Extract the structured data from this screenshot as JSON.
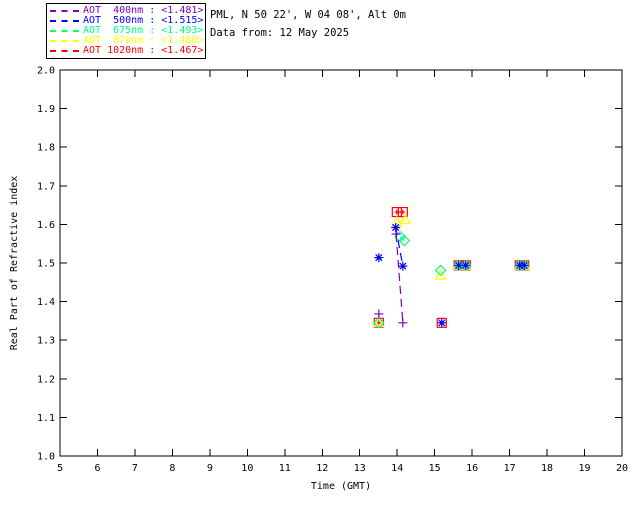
{
  "window": {
    "background": "#ffffff",
    "foreground": "#000000"
  },
  "header": {
    "site_line": "PML, N 50 22', W 04 08', Alt 0m",
    "date_line": "Data from: 12 May 2025"
  },
  "legend": {
    "entries": [
      {
        "label": "AOT  400nm : <1.481>",
        "color": "#7A00BE",
        "symbol": "plus"
      },
      {
        "label": "AOT  500nm : <1.515>",
        "color": "#0000FF",
        "symbol": "asterisk"
      },
      {
        "label": "AOT  675nm : <1.493>",
        "color": "#00FF7F",
        "symbol": "diamond"
      },
      {
        "label": "AOT  870nm : <1.480>",
        "color": "#FFFF00",
        "symbol": "triangle"
      },
      {
        "label": "AOT 1020nm : <1.467>",
        "color": "#FF0000",
        "symbol": "square-plus"
      }
    ]
  },
  "chart_data": {
    "type": "scatter",
    "title": "",
    "xlabel": "Time (GMT)",
    "ylabel": "Real Part of Refractive index",
    "xlim": [
      5,
      20
    ],
    "ylim": [
      1.0,
      2.0
    ],
    "xticks": [
      5,
      6,
      7,
      8,
      9,
      10,
      11,
      12,
      13,
      14,
      15,
      16,
      17,
      18,
      19,
      20
    ],
    "yticks": [
      1.0,
      1.1,
      1.2,
      1.3,
      1.4,
      1.5,
      1.6,
      1.7,
      1.8,
      1.9,
      2.0
    ],
    "grid": false,
    "legend_position": "top-left-outside",
    "axis_color": "#000000",
    "series": [
      {
        "name": "AOT 1020nm",
        "wavelength_nm": 1020,
        "mean_label": "<1.467>",
        "color": "#FF0000",
        "symbol": "square-plus",
        "points": [
          [
            13.51,
            1.345
          ],
          [
            13.99,
            1.632
          ],
          [
            14.15,
            1.632
          ],
          [
            15.19,
            1.345
          ],
          [
            15.64,
            1.494
          ],
          [
            15.83,
            1.494
          ],
          [
            17.27,
            1.494
          ],
          [
            17.39,
            1.494
          ]
        ],
        "lines": [
          [
            [
              13.99,
              1.632
            ],
            [
              14.15,
              1.632
            ]
          ]
        ]
      },
      {
        "name": "AOT  870nm",
        "wavelength_nm": 870,
        "mean_label": "<1.480>",
        "color": "#FFFF00",
        "symbol": "triangle",
        "points": [
          [
            13.51,
            1.345
          ],
          [
            13.99,
            1.606
          ],
          [
            14.22,
            1.612
          ],
          [
            15.16,
            1.468
          ],
          [
            15.64,
            1.494
          ],
          [
            15.83,
            1.494
          ],
          [
            17.27,
            1.494
          ],
          [
            17.39,
            1.494
          ]
        ],
        "lines": [
          [
            [
              13.99,
              1.606
            ],
            [
              14.22,
              1.612
            ]
          ]
        ]
      },
      {
        "name": "AOT  675nm",
        "wavelength_nm": 675,
        "mean_label": "<1.493>",
        "color": "#00FF7F",
        "symbol": "diamond",
        "points": [
          [
            13.51,
            1.345
          ],
          [
            14.08,
            1.568
          ],
          [
            14.19,
            1.558
          ],
          [
            15.16,
            1.481
          ],
          [
            15.64,
            1.494
          ],
          [
            15.83,
            1.494
          ],
          [
            17.27,
            1.494
          ],
          [
            17.39,
            1.494
          ]
        ],
        "lines": [
          [
            [
              14.08,
              1.568
            ],
            [
              14.19,
              1.558
            ]
          ]
        ]
      },
      {
        "name": "AOT  500nm",
        "wavelength_nm": 500,
        "mean_label": "<1.515>",
        "color": "#0000FF",
        "symbol": "asterisk",
        "points": [
          [
            13.51,
            1.514
          ],
          [
            13.96,
            1.592
          ],
          [
            14.15,
            1.492
          ],
          [
            15.19,
            1.345
          ],
          [
            15.64,
            1.494
          ],
          [
            15.83,
            1.494
          ],
          [
            17.27,
            1.494
          ],
          [
            17.39,
            1.494
          ]
        ],
        "lines": [
          [
            [
              13.96,
              1.592
            ],
            [
              14.15,
              1.492
            ]
          ]
        ]
      },
      {
        "name": "AOT  400nm",
        "wavelength_nm": 400,
        "mean_label": "<1.481>",
        "color": "#7A00BE",
        "symbol": "plus",
        "points": [
          [
            13.51,
            1.368
          ],
          [
            13.97,
            1.575
          ],
          [
            14.15,
            1.345
          ]
        ],
        "lines": [
          [
            [
              13.97,
              1.575
            ],
            [
              14.15,
              1.345
            ]
          ]
        ]
      }
    ]
  }
}
